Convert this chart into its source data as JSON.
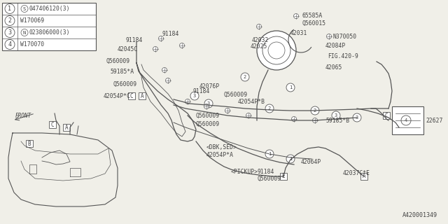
{
  "bg_color": "#f0efe8",
  "line_color": "#555555",
  "text_color": "#444444",
  "border_color": "#555555",
  "title_bottom": "A420001349",
  "figsize": [
    6.4,
    3.2
  ],
  "dpi": 100,
  "legend": [
    {
      "num": "1",
      "sym": "S",
      "text": "047406120(3)"
    },
    {
      "num": "2",
      "sym": "",
      "text": "W170069"
    },
    {
      "num": "3",
      "sym": "N",
      "text": "023806000(3)"
    },
    {
      "num": "4",
      "sym": "",
      "text": "W170070"
    }
  ]
}
